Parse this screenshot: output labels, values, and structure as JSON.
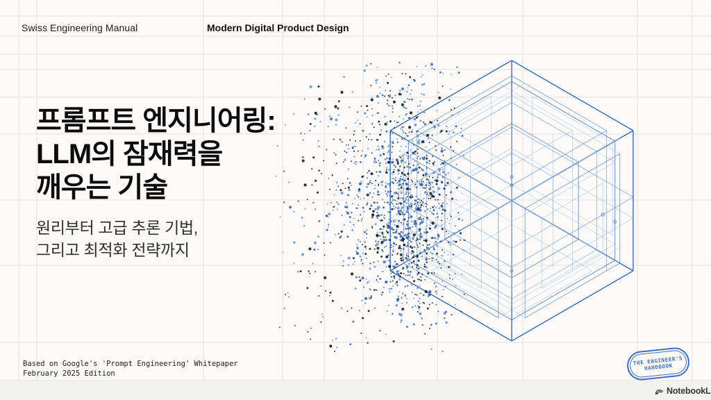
{
  "header": {
    "left_label": "Swiss Engineering Manual",
    "right_label": "Modern Digital Product Design"
  },
  "title": {
    "line1": "프롬프트 엔지니어링:",
    "line2": "LLM의 잠재력을",
    "line3": "깨우는 기술"
  },
  "subtitle": {
    "line1": "원리부터 고급 추론 기법,",
    "line2": "그리고 최적화 전략까지"
  },
  "footer": {
    "line1": "Based on Google's 'Prompt Engineering' Whitepaper",
    "line2": "February 2025 Edition"
  },
  "stamp": {
    "line1": "THE ENGINEER'S",
    "line2": "HANDBOOK",
    "color": "#2f63b8"
  },
  "brand": {
    "label": "NotebookLM",
    "color": "#35383b"
  },
  "illustration": {
    "description": "isometric blueprint wireframe cube dissolving into a particle cloud on its left side",
    "line_color_strong": "#2d63b0",
    "line_color_mid": "#4579c2",
    "line_color_light": "#8fb0d8",
    "particle_blues": [
      "#2e63ae",
      "#4272b8",
      "#6f97cc"
    ],
    "particle_darks": [
      "#15181d",
      "#1d2738"
    ],
    "particle_count": 1500
  },
  "colors": {
    "background": "#fbfaf8",
    "footer_strip": "#f2f2f0",
    "grid_line": "#e3e3e1",
    "title_text": "#0c0c0c",
    "subtitle_text": "#2e2e2e",
    "header_text": "#1d1d1d",
    "footer_text": "#1c1c1c"
  }
}
